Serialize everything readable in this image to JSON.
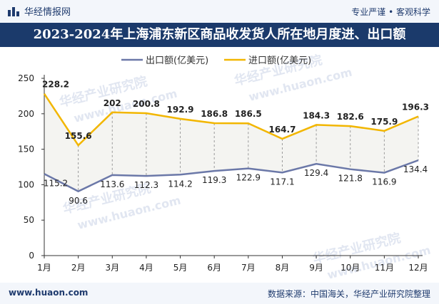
{
  "header": {
    "brand": "华经情报网",
    "slogan": "专业严谨 • 客观科学"
  },
  "title": "2023-2024年上海浦东新区商品收发货人所在地月度进、出口额",
  "footer": {
    "site": "www.huaon.com",
    "source": "数据来源：中国海关，华经产业研究院整理"
  },
  "watermarks": [
    "华经产业研究院",
    "www.huaon.com"
  ],
  "colors": {
    "export": "#6b78a8",
    "import": "#f2b600",
    "title_bg": "#1b3a6b",
    "brand": "#1f3b6e"
  },
  "chart_data": {
    "type": "line",
    "categories": [
      "1月",
      "2月",
      "3月",
      "4月",
      "5月",
      "6月",
      "7月",
      "8月",
      "9月",
      "10月",
      "11月",
      "12月"
    ],
    "series": [
      {
        "name": "出口额(亿美元)",
        "values": [
          115.2,
          90.6,
          113.6,
          112.3,
          114.2,
          119.3,
          122.9,
          117.1,
          129.4,
          121.8,
          116.9,
          134.4
        ]
      },
      {
        "name": "进口额(亿美元)",
        "values": [
          228.2,
          155.6,
          202,
          200.8,
          192.9,
          186.8,
          186.5,
          164.7,
          184.3,
          182.6,
          175.9,
          196.3
        ]
      }
    ],
    "ylim": [
      0,
      250
    ],
    "yticks": [
      0,
      50,
      100,
      150,
      200,
      250
    ],
    "legend_position": "top-center",
    "grid": false
  }
}
